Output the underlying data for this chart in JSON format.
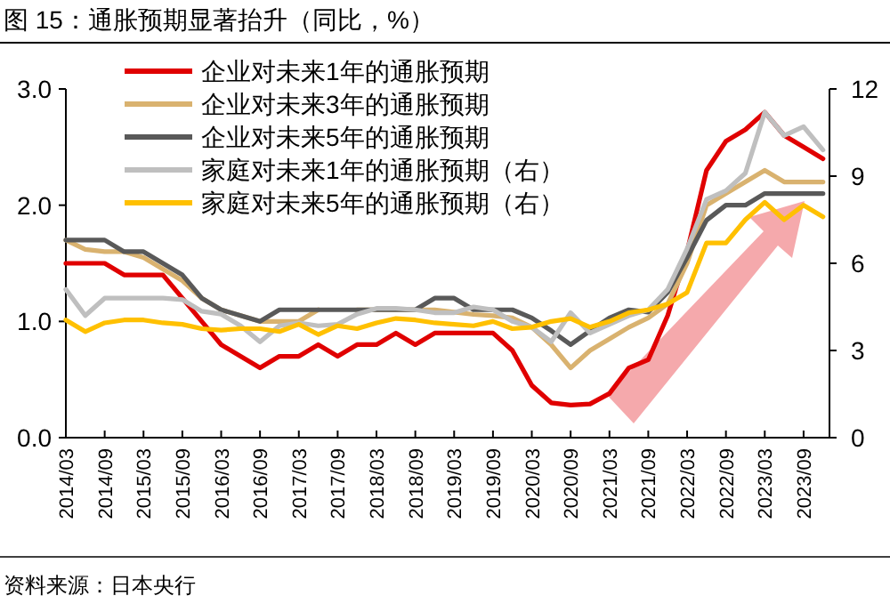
{
  "chart_data": {
    "type": "line",
    "title": "图 15：通胀预期显著抬升（同比，%）",
    "annotations": [
      "资料来源：日本央行"
    ],
    "x": [
      "2014-03",
      "2014-06",
      "2014-09",
      "2014-12",
      "2015-03",
      "2015-06",
      "2015-09",
      "2015-12",
      "2016-03",
      "2016-06",
      "2016-09",
      "2016-12",
      "2017-03",
      "2017-06",
      "2017-09",
      "2017-12",
      "2018-03",
      "2018-06",
      "2018-09",
      "2018-12",
      "2019-03",
      "2019-06",
      "2019-09",
      "2019-12",
      "2020-03",
      "2020-06",
      "2020-09",
      "2020-12",
      "2021-03",
      "2021-06",
      "2021-09",
      "2021-12",
      "2022-03",
      "2022-06",
      "2022-09",
      "2022-12",
      "2023-03",
      "2023-06",
      "2023-09",
      "2023-12"
    ],
    "series": [
      {
        "name": "企业对未来1年的通胀预期",
        "color": "#e00000",
        "values": [
          1.5,
          1.5,
          1.5,
          1.4,
          1.4,
          1.4,
          1.2,
          1.0,
          0.8,
          0.7,
          0.6,
          0.7,
          0.7,
          0.8,
          0.7,
          0.8,
          0.8,
          0.9,
          0.8,
          0.9,
          0.9,
          0.9,
          0.9,
          0.75,
          0.45,
          0.3,
          0.28,
          0.29,
          0.38,
          0.6,
          0.67,
          1.05,
          1.6,
          2.3,
          2.55,
          2.65,
          2.8,
          2.6,
          2.5,
          2.4
        ]
      },
      {
        "name": "企业对未来3年的通胀预期",
        "color": "#d9b26f",
        "values": [
          1.7,
          1.62,
          1.6,
          1.6,
          1.55,
          1.45,
          1.35,
          1.2,
          1.1,
          1.05,
          1.0,
          1.0,
          1.0,
          1.1,
          null,
          1.1,
          1.1,
          1.1,
          1.1,
          1.1,
          1.08,
          1.06,
          1.05,
          1.03,
          0.95,
          0.8,
          0.6,
          0.75,
          0.85,
          0.95,
          1.03,
          1.15,
          1.5,
          2.0,
          2.1,
          2.2,
          2.3,
          2.2,
          2.2,
          2.2
        ]
      },
      {
        "name": "企业对未来5年的通胀预期",
        "color": "#595959",
        "values": [
          1.7,
          1.7,
          1.7,
          1.6,
          1.6,
          1.5,
          1.4,
          1.2,
          1.1,
          1.05,
          1.0,
          1.1,
          1.1,
          1.1,
          1.1,
          1.1,
          1.1,
          1.1,
          1.1,
          1.2,
          1.2,
          1.1,
          1.1,
          1.1,
          1.03,
          0.92,
          0.8,
          0.92,
          1.03,
          1.1,
          1.08,
          1.25,
          1.55,
          1.87,
          2.0,
          2.0,
          2.1,
          2.1,
          2.1,
          2.1
        ]
      },
      {
        "name": "家庭对未来1年的通胀预期（右）",
        "color": "#bfbfbf",
        "axis": "y2",
        "values": [
          5.1,
          4.2,
          4.8,
          4.8,
          4.8,
          4.8,
          4.75,
          4.35,
          4.25,
          3.85,
          3.3,
          3.85,
          3.95,
          3.85,
          3.9,
          4.25,
          4.45,
          4.45,
          4.4,
          4.3,
          4.3,
          4.5,
          4.4,
          4.0,
          3.8,
          3.3,
          4.3,
          3.6,
          3.9,
          4.2,
          4.4,
          5.1,
          6.5,
          8.2,
          8.5,
          9.1,
          11.2,
          10.4,
          10.7,
          9.9
        ]
      },
      {
        "name": "家庭对未来5年的通胀预期（右）",
        "color": "#ffc000",
        "axis": "y2",
        "values": [
          4.05,
          3.65,
          3.95,
          4.05,
          4.05,
          3.95,
          3.9,
          3.75,
          3.7,
          3.75,
          3.75,
          3.65,
          3.9,
          3.55,
          3.85,
          3.75,
          3.95,
          4.1,
          4.05,
          3.95,
          3.9,
          3.85,
          4.0,
          3.75,
          3.8,
          4.0,
          4.1,
          3.8,
          4.0,
          4.3,
          4.4,
          4.6,
          5.0,
          6.7,
          6.7,
          7.5,
          8.1,
          7.5,
          8.0,
          7.6
        ]
      }
    ],
    "xlim": [
      "2014-03",
      "2024-01"
    ],
    "xticks": [
      {
        "value": "2014-03",
        "label": "2014/03"
      },
      {
        "value": "2014-09",
        "label": "2014/09"
      },
      {
        "value": "2015-03",
        "label": "2015/03"
      },
      {
        "value": "2015-09",
        "label": "2015/09"
      },
      {
        "value": "2016-03",
        "label": "2016/03"
      },
      {
        "value": "2016-09",
        "label": "2016/09"
      },
      {
        "value": "2017-03",
        "label": "2017/03"
      },
      {
        "value": "2017-09",
        "label": "2017/09"
      },
      {
        "value": "2018-03",
        "label": "2018/03"
      },
      {
        "value": "2018-09",
        "label": "2018/09"
      },
      {
        "value": "2019-03",
        "label": "2019/03"
      },
      {
        "value": "2019-09",
        "label": "2019/09"
      },
      {
        "value": "2020-03",
        "label": "2020/03"
      },
      {
        "value": "2020-09",
        "label": "2020/09"
      },
      {
        "value": "2021-03",
        "label": "2021/03"
      },
      {
        "value": "2021-09",
        "label": "2021/09"
      },
      {
        "value": "2022-03",
        "label": "2022/03"
      },
      {
        "value": "2022-09",
        "label": "2022/09"
      },
      {
        "value": "2023-03",
        "label": "2023/03"
      },
      {
        "value": "2023-09",
        "label": "2023/09"
      }
    ],
    "ylim": [
      0,
      3
    ],
    "yticks": [
      {
        "value": 0,
        "label": "0.0"
      },
      {
        "value": 1,
        "label": "1.0"
      },
      {
        "value": 2,
        "label": "2.0"
      },
      {
        "value": 3,
        "label": "3.0"
      }
    ],
    "y2lim": [
      0,
      12
    ],
    "y2ticks": [
      0,
      3,
      6,
      9,
      12
    ],
    "legend": "top left",
    "grid": false,
    "marker": "none",
    "line_style": "solid"
  }
}
